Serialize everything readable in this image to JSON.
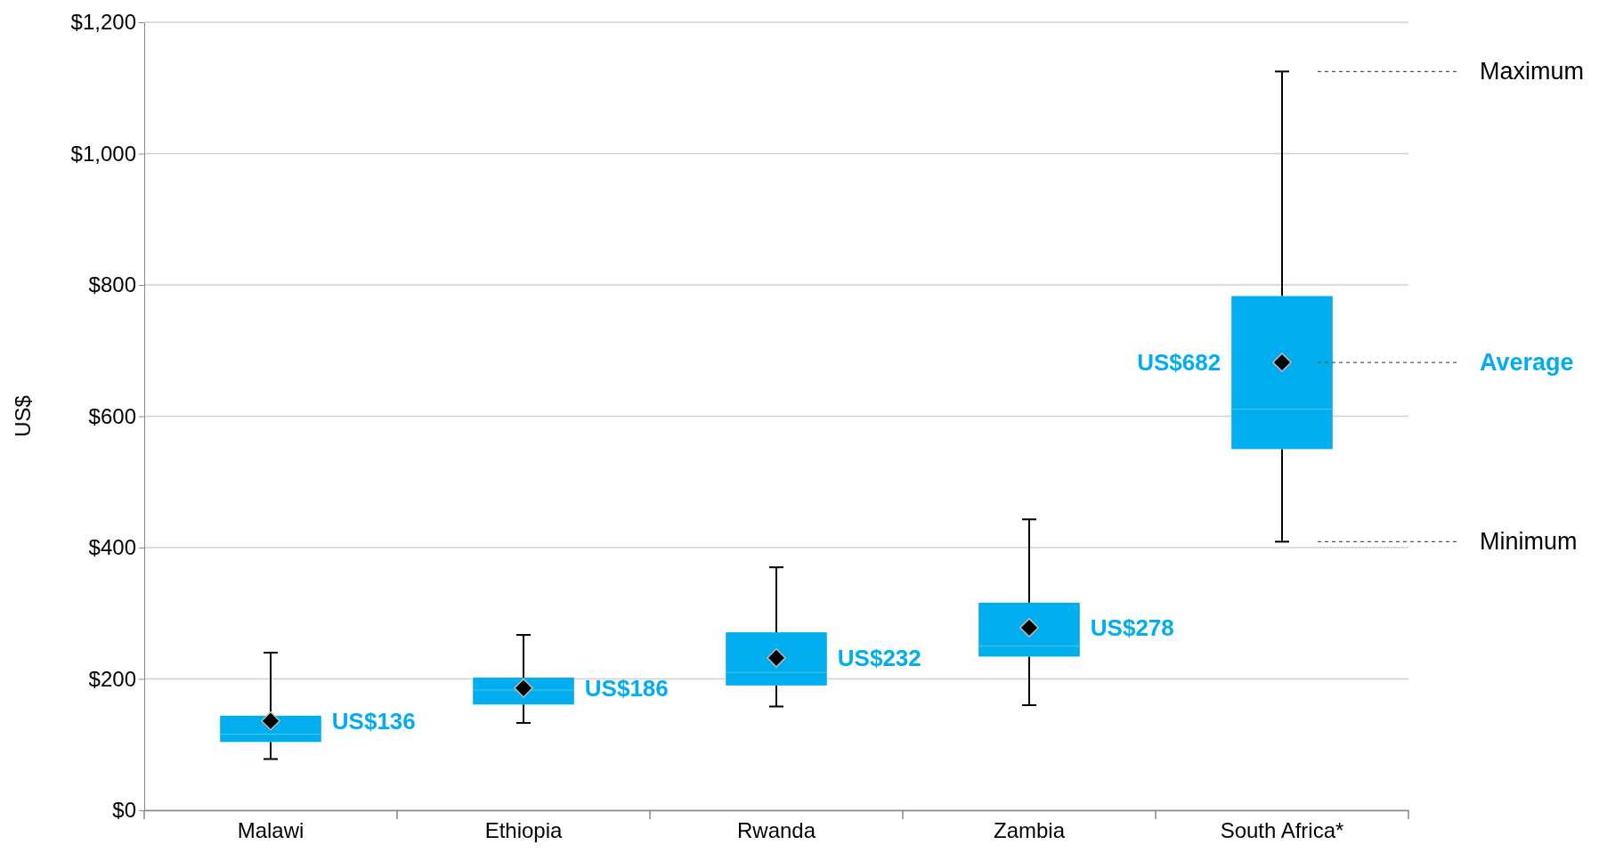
{
  "chart_data": {
    "type": "box",
    "ylabel": "US$",
    "categories": [
      "Malawi",
      "Ethiopia",
      "Rwanda",
      "Zambia",
      "South Africa*"
    ],
    "boxes": [
      {
        "low": 78,
        "q1": 104,
        "median": 116,
        "q3": 144,
        "high": 240,
        "mean": 136
      },
      {
        "low": 133,
        "q1": 161,
        "median": 183,
        "q3": 202,
        "high": 267,
        "mean": 186
      },
      {
        "low": 158,
        "q1": 190,
        "median": 210,
        "q3": 271,
        "high": 370,
        "mean": 232
      },
      {
        "low": 160,
        "q1": 234,
        "median": 250,
        "q3": 316,
        "high": 443,
        "mean": 278
      },
      {
        "low": 409,
        "q1": 550,
        "median": 611,
        "q3": 783,
        "high": 1125,
        "mean": 682
      }
    ],
    "value_labels": [
      "US$136",
      "US$186",
      "US$232",
      "US$278",
      "US$682"
    ],
    "color": "#00aeef",
    "marker": "diamond",
    "grid": "y",
    "ylim": [
      0,
      1200
    ],
    "yticks": [
      {
        "value": 0,
        "label": "$0"
      },
      {
        "value": 200,
        "label": "$200"
      },
      {
        "value": 400,
        "label": "$400"
      },
      {
        "value": 600,
        "label": "$600"
      },
      {
        "value": 800,
        "label": "$800"
      },
      {
        "value": 1000,
        "label": "$1,000"
      },
      {
        "value": 1200,
        "label": "$1,200"
      }
    ],
    "annotations": [
      "Maximum",
      "Average",
      "Minimum"
    ]
  }
}
